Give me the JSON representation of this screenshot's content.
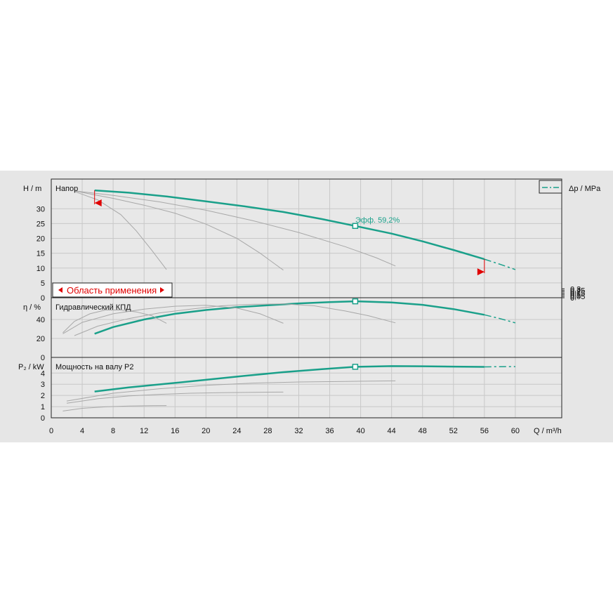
{
  "colors": {
    "background": "#e6e6e6",
    "plot": "#e8e8e8",
    "grid": "#c8c8c8",
    "main": "#1aa08a",
    "secondary": "#a8a8a8",
    "range": "#e00000"
  },
  "legend": {
    "label": "Δp / MPa"
  },
  "panels": {
    "head": {
      "axis_label": "H / m",
      "title": "Напор",
      "eff_label": "Эфф.  59,2%",
      "range_label": "Область применения"
    },
    "efficiency": {
      "axis_label": "η / %",
      "title": "Гидравлический КПД"
    },
    "power": {
      "axis_label": "P₂ / kW",
      "title": "Мощность на валу P2"
    }
  },
  "x_axis_label": "Q / m³/h",
  "chart_data": [
    {
      "type": "line",
      "name": "head",
      "xlim": [
        0,
        66
      ],
      "ylim": [
        0,
        40
      ],
      "yticks": [
        0,
        5,
        10,
        15,
        20,
        25,
        30
      ],
      "y2ticks": [
        0,
        0.05,
        0.1,
        0.15,
        0.2,
        0.25,
        0.3
      ],
      "y2tick_labels": [
        "0",
        "0,05",
        "0,1",
        "0,15",
        "0,2",
        "0,25",
        "0,3"
      ],
      "xticks": [
        0,
        4,
        8,
        12,
        16,
        20,
        24,
        28,
        32,
        36,
        40,
        44,
        48,
        52,
        56,
        60
      ],
      "grid": true,
      "series": [
        {
          "role": "main",
          "x": [
            5.6,
            10,
            15,
            20,
            25,
            30,
            35,
            39.3,
            44,
            48,
            52,
            56
          ],
          "values": [
            36.2,
            35.4,
            34.1,
            32.5,
            30.8,
            28.9,
            26.5,
            24.2,
            21.6,
            19.0,
            16.1,
            13.0
          ]
        },
        {
          "role": "main-extension",
          "x": [
            56,
            58,
            60
          ],
          "values": [
            13.0,
            11.3,
            9.5
          ]
        },
        {
          "role": "speed",
          "x": [
            3,
            8,
            14,
            20,
            26,
            32,
            38,
            42,
            44.5
          ],
          "values": [
            36.0,
            34.5,
            32.3,
            29.5,
            26.0,
            22.0,
            17.2,
            13.5,
            10.7
          ]
        },
        {
          "role": "speed",
          "x": [
            3,
            8,
            12,
            16,
            20,
            24,
            27,
            30
          ],
          "values": [
            36.0,
            33.5,
            31.2,
            28.5,
            24.8,
            20.0,
            15.0,
            9.3
          ]
        },
        {
          "role": "speed",
          "x": [
            3,
            6,
            9,
            11,
            13,
            14.9
          ],
          "values": [
            35.8,
            33.0,
            28.0,
            22.5,
            16.0,
            9.5
          ]
        }
      ]
    },
    {
      "type": "line",
      "name": "efficiency",
      "xlim": [
        0,
        66
      ],
      "ylim": [
        0,
        63
      ],
      "yticks": [
        0,
        20,
        40
      ],
      "grid": true,
      "series": [
        {
          "role": "main",
          "x": [
            5.6,
            8,
            12,
            16,
            20,
            24,
            28,
            32,
            36,
            39.3,
            44,
            48,
            52,
            56
          ],
          "values": [
            25,
            32,
            40,
            46,
            50,
            53,
            55,
            57,
            58.3,
            59.2,
            58.0,
            55.5,
            51.0,
            45.0
          ]
        },
        {
          "role": "main-extension",
          "x": [
            56,
            58,
            60
          ],
          "values": [
            45.0,
            41.0,
            36.5
          ]
        },
        {
          "role": "speed",
          "x": [
            3,
            6,
            10,
            14,
            18,
            22,
            26,
            30,
            34,
            38,
            41,
            44.5
          ],
          "values": [
            23,
            33,
            41,
            47,
            51,
            54.5,
            56,
            56.5,
            54.5,
            49.0,
            44.0,
            36.5
          ]
        },
        {
          "role": "speed",
          "x": [
            1.5,
            4,
            8,
            12,
            16,
            20,
            24,
            27,
            30
          ],
          "values": [
            25,
            37,
            46,
            51,
            54,
            55,
            52,
            46,
            36
          ]
        },
        {
          "role": "speed",
          "x": [
            1.5,
            3,
            5,
            7,
            9,
            11,
            13,
            14.9
          ],
          "values": [
            26,
            38,
            46,
            50,
            50,
            48,
            44,
            36
          ]
        }
      ]
    },
    {
      "type": "line",
      "name": "power",
      "xlim": [
        0,
        66
      ],
      "ylim": [
        0,
        5.4
      ],
      "yticks": [
        0,
        1,
        2,
        3,
        4
      ],
      "grid": true,
      "series": [
        {
          "role": "main",
          "x": [
            5.6,
            10,
            15,
            20,
            25,
            30,
            35,
            39.3,
            44,
            48,
            52,
            56
          ],
          "values": [
            2.35,
            2.72,
            3.05,
            3.4,
            3.75,
            4.08,
            4.35,
            4.56,
            4.62,
            4.61,
            4.58,
            4.55
          ]
        },
        {
          "role": "main-extension",
          "x": [
            56,
            58,
            60
          ],
          "values": [
            4.55,
            4.57,
            4.58
          ]
        },
        {
          "role": "speed",
          "x": [
            2,
            8,
            14,
            20,
            26,
            32,
            38,
            44.5
          ],
          "values": [
            1.5,
            2.2,
            2.6,
            2.9,
            3.1,
            3.2,
            3.25,
            3.3
          ]
        },
        {
          "role": "speed",
          "x": [
            2,
            6,
            10,
            14,
            18,
            22,
            26,
            30
          ],
          "values": [
            1.3,
            1.7,
            1.95,
            2.1,
            2.2,
            2.25,
            2.28,
            2.3
          ]
        },
        {
          "role": "speed",
          "x": [
            1.5,
            4,
            7,
            10,
            13,
            14.9
          ],
          "values": [
            0.6,
            0.85,
            0.98,
            1.05,
            1.08,
            1.09
          ]
        }
      ]
    }
  ],
  "operating_point": {
    "x": 39.3,
    "head": 24.2,
    "efficiency": 59.2,
    "power": 4.56
  }
}
